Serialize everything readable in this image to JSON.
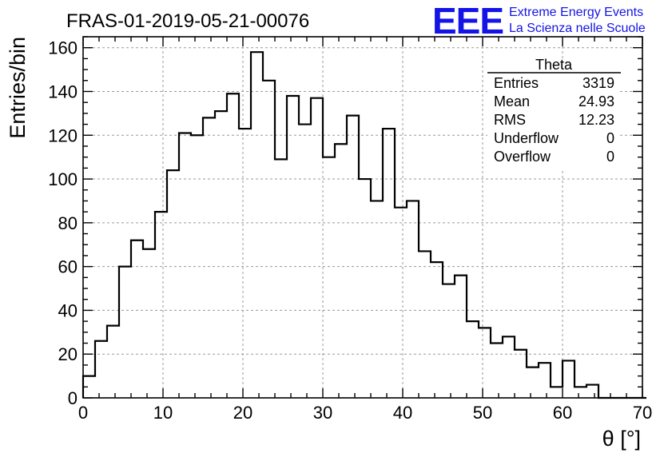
{
  "header": {
    "run_title": "FRAS-01-2019-05-21-00076",
    "logo_text": "EEE",
    "logo_line1": "Extreme Energy Events",
    "logo_line2": "La Scienza nelle Scuole"
  },
  "stats_box": {
    "title": "Theta",
    "rows": [
      {
        "label": "Entries",
        "value": "3319"
      },
      {
        "label": "Mean",
        "value": "24.93"
      },
      {
        "label": "RMS",
        "value": "12.23"
      },
      {
        "label": "Underflow",
        "value": "0"
      },
      {
        "label": "Overflow",
        "value": "0"
      }
    ]
  },
  "colors": {
    "logo": "#1414e6",
    "hist": "#000000",
    "grid": "#9a9a9a"
  },
  "chart_data": {
    "type": "bar",
    "histogram": true,
    "xlabel": "θ [°]",
    "ylabel": "Entries/bin",
    "xlim": [
      0,
      70
    ],
    "ylim": [
      0,
      165
    ],
    "grid": true,
    "legend": "top-right",
    "xticks": [
      0,
      10,
      20,
      30,
      40,
      50,
      60,
      70
    ],
    "yticks": [
      0,
      20,
      40,
      60,
      80,
      100,
      120,
      140,
      160
    ],
    "bin_width": 1.5,
    "bin_edges_start": 0,
    "values": [
      10,
      26,
      33,
      60,
      72,
      68,
      85,
      104,
      121,
      120,
      128,
      131,
      139,
      123,
      158,
      145,
      109,
      138,
      125,
      137,
      110,
      116,
      129,
      100,
      90,
      123,
      87,
      90,
      67,
      62,
      52,
      56,
      35,
      32,
      25,
      28,
      22,
      14,
      16,
      5,
      17,
      5,
      6,
      0,
      0,
      0,
      0
    ]
  }
}
